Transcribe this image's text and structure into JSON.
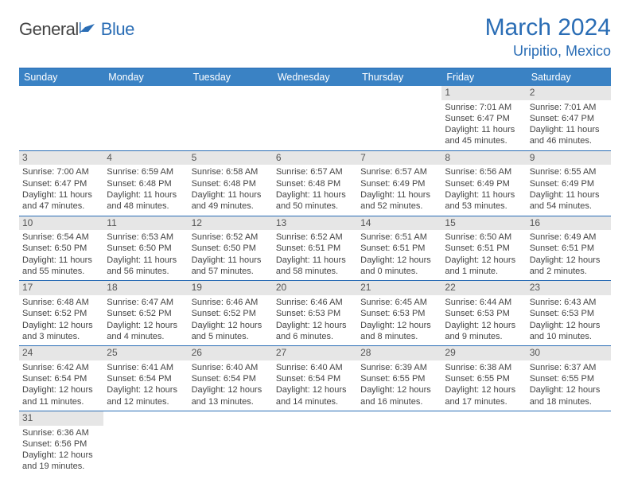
{
  "brand": {
    "name": "General",
    "accent": "Blue"
  },
  "title": "March 2024",
  "location": "Uripitio, Mexico",
  "colors": {
    "header_bg": "#3a82c4",
    "border": "#2a6db5",
    "daynum_bg": "#e6e6e6",
    "text": "#444444",
    "brand_accent": "#2a6db5"
  },
  "daysOfWeek": [
    "Sunday",
    "Monday",
    "Tuesday",
    "Wednesday",
    "Thursday",
    "Friday",
    "Saturday"
  ],
  "weeks": [
    [
      {
        "n": "",
        "empty": true
      },
      {
        "n": "",
        "empty": true
      },
      {
        "n": "",
        "empty": true
      },
      {
        "n": "",
        "empty": true
      },
      {
        "n": "",
        "empty": true
      },
      {
        "n": "1",
        "sunrise": "Sunrise: 7:01 AM",
        "sunset": "Sunset: 6:47 PM",
        "daylight1": "Daylight: 11 hours",
        "daylight2": "and 45 minutes."
      },
      {
        "n": "2",
        "sunrise": "Sunrise: 7:01 AM",
        "sunset": "Sunset: 6:47 PM",
        "daylight1": "Daylight: 11 hours",
        "daylight2": "and 46 minutes."
      }
    ],
    [
      {
        "n": "3",
        "sunrise": "Sunrise: 7:00 AM",
        "sunset": "Sunset: 6:47 PM",
        "daylight1": "Daylight: 11 hours",
        "daylight2": "and 47 minutes."
      },
      {
        "n": "4",
        "sunrise": "Sunrise: 6:59 AM",
        "sunset": "Sunset: 6:48 PM",
        "daylight1": "Daylight: 11 hours",
        "daylight2": "and 48 minutes."
      },
      {
        "n": "5",
        "sunrise": "Sunrise: 6:58 AM",
        "sunset": "Sunset: 6:48 PM",
        "daylight1": "Daylight: 11 hours",
        "daylight2": "and 49 minutes."
      },
      {
        "n": "6",
        "sunrise": "Sunrise: 6:57 AM",
        "sunset": "Sunset: 6:48 PM",
        "daylight1": "Daylight: 11 hours",
        "daylight2": "and 50 minutes."
      },
      {
        "n": "7",
        "sunrise": "Sunrise: 6:57 AM",
        "sunset": "Sunset: 6:49 PM",
        "daylight1": "Daylight: 11 hours",
        "daylight2": "and 52 minutes."
      },
      {
        "n": "8",
        "sunrise": "Sunrise: 6:56 AM",
        "sunset": "Sunset: 6:49 PM",
        "daylight1": "Daylight: 11 hours",
        "daylight2": "and 53 minutes."
      },
      {
        "n": "9",
        "sunrise": "Sunrise: 6:55 AM",
        "sunset": "Sunset: 6:49 PM",
        "daylight1": "Daylight: 11 hours",
        "daylight2": "and 54 minutes."
      }
    ],
    [
      {
        "n": "10",
        "sunrise": "Sunrise: 6:54 AM",
        "sunset": "Sunset: 6:50 PM",
        "daylight1": "Daylight: 11 hours",
        "daylight2": "and 55 minutes."
      },
      {
        "n": "11",
        "sunrise": "Sunrise: 6:53 AM",
        "sunset": "Sunset: 6:50 PM",
        "daylight1": "Daylight: 11 hours",
        "daylight2": "and 56 minutes."
      },
      {
        "n": "12",
        "sunrise": "Sunrise: 6:52 AM",
        "sunset": "Sunset: 6:50 PM",
        "daylight1": "Daylight: 11 hours",
        "daylight2": "and 57 minutes."
      },
      {
        "n": "13",
        "sunrise": "Sunrise: 6:52 AM",
        "sunset": "Sunset: 6:51 PM",
        "daylight1": "Daylight: 11 hours",
        "daylight2": "and 58 minutes."
      },
      {
        "n": "14",
        "sunrise": "Sunrise: 6:51 AM",
        "sunset": "Sunset: 6:51 PM",
        "daylight1": "Daylight: 12 hours",
        "daylight2": "and 0 minutes."
      },
      {
        "n": "15",
        "sunrise": "Sunrise: 6:50 AM",
        "sunset": "Sunset: 6:51 PM",
        "daylight1": "Daylight: 12 hours",
        "daylight2": "and 1 minute."
      },
      {
        "n": "16",
        "sunrise": "Sunrise: 6:49 AM",
        "sunset": "Sunset: 6:51 PM",
        "daylight1": "Daylight: 12 hours",
        "daylight2": "and 2 minutes."
      }
    ],
    [
      {
        "n": "17",
        "sunrise": "Sunrise: 6:48 AM",
        "sunset": "Sunset: 6:52 PM",
        "daylight1": "Daylight: 12 hours",
        "daylight2": "and 3 minutes."
      },
      {
        "n": "18",
        "sunrise": "Sunrise: 6:47 AM",
        "sunset": "Sunset: 6:52 PM",
        "daylight1": "Daylight: 12 hours",
        "daylight2": "and 4 minutes."
      },
      {
        "n": "19",
        "sunrise": "Sunrise: 6:46 AM",
        "sunset": "Sunset: 6:52 PM",
        "daylight1": "Daylight: 12 hours",
        "daylight2": "and 5 minutes."
      },
      {
        "n": "20",
        "sunrise": "Sunrise: 6:46 AM",
        "sunset": "Sunset: 6:53 PM",
        "daylight1": "Daylight: 12 hours",
        "daylight2": "and 6 minutes."
      },
      {
        "n": "21",
        "sunrise": "Sunrise: 6:45 AM",
        "sunset": "Sunset: 6:53 PM",
        "daylight1": "Daylight: 12 hours",
        "daylight2": "and 8 minutes."
      },
      {
        "n": "22",
        "sunrise": "Sunrise: 6:44 AM",
        "sunset": "Sunset: 6:53 PM",
        "daylight1": "Daylight: 12 hours",
        "daylight2": "and 9 minutes."
      },
      {
        "n": "23",
        "sunrise": "Sunrise: 6:43 AM",
        "sunset": "Sunset: 6:53 PM",
        "daylight1": "Daylight: 12 hours",
        "daylight2": "and 10 minutes."
      }
    ],
    [
      {
        "n": "24",
        "sunrise": "Sunrise: 6:42 AM",
        "sunset": "Sunset: 6:54 PM",
        "daylight1": "Daylight: 12 hours",
        "daylight2": "and 11 minutes."
      },
      {
        "n": "25",
        "sunrise": "Sunrise: 6:41 AM",
        "sunset": "Sunset: 6:54 PM",
        "daylight1": "Daylight: 12 hours",
        "daylight2": "and 12 minutes."
      },
      {
        "n": "26",
        "sunrise": "Sunrise: 6:40 AM",
        "sunset": "Sunset: 6:54 PM",
        "daylight1": "Daylight: 12 hours",
        "daylight2": "and 13 minutes."
      },
      {
        "n": "27",
        "sunrise": "Sunrise: 6:40 AM",
        "sunset": "Sunset: 6:54 PM",
        "daylight1": "Daylight: 12 hours",
        "daylight2": "and 14 minutes."
      },
      {
        "n": "28",
        "sunrise": "Sunrise: 6:39 AM",
        "sunset": "Sunset: 6:55 PM",
        "daylight1": "Daylight: 12 hours",
        "daylight2": "and 16 minutes."
      },
      {
        "n": "29",
        "sunrise": "Sunrise: 6:38 AM",
        "sunset": "Sunset: 6:55 PM",
        "daylight1": "Daylight: 12 hours",
        "daylight2": "and 17 minutes."
      },
      {
        "n": "30",
        "sunrise": "Sunrise: 6:37 AM",
        "sunset": "Sunset: 6:55 PM",
        "daylight1": "Daylight: 12 hours",
        "daylight2": "and 18 minutes."
      }
    ],
    [
      {
        "n": "31",
        "sunrise": "Sunrise: 6:36 AM",
        "sunset": "Sunset: 6:56 PM",
        "daylight1": "Daylight: 12 hours",
        "daylight2": "and 19 minutes."
      },
      {
        "n": "",
        "empty": true
      },
      {
        "n": "",
        "empty": true
      },
      {
        "n": "",
        "empty": true
      },
      {
        "n": "",
        "empty": true
      },
      {
        "n": "",
        "empty": true
      },
      {
        "n": "",
        "empty": true
      }
    ]
  ]
}
